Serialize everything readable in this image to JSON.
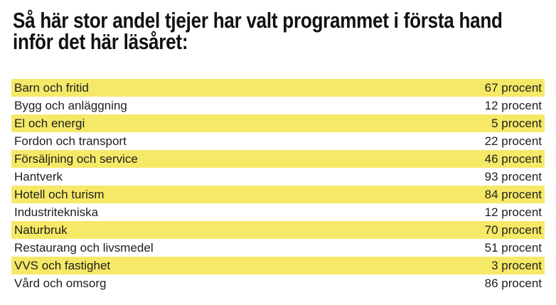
{
  "title": "Så här stor andel tjejer har valt programmet i första hand inför det här läsåret:",
  "colors": {
    "highlight": "#f6e968",
    "text": "#1e1e1e",
    "background": "#ffffff"
  },
  "table": {
    "unit": "procent",
    "rows": [
      {
        "label": "Barn och fritid",
        "value": "67 procent",
        "highlighted": true
      },
      {
        "label": "Bygg och anläggning",
        "value": "12 procent",
        "highlighted": false
      },
      {
        "label": "El och energi",
        "value": "5 procent",
        "highlighted": true
      },
      {
        "label": "Fordon och transport",
        "value": "22 procent",
        "highlighted": false
      },
      {
        "label": "Försäljning och service",
        "value": "46 procent",
        "highlighted": true
      },
      {
        "label": "Hantverk",
        "value": "93 procent",
        "highlighted": false
      },
      {
        "label": "Hotell och turism",
        "value": "84 procent",
        "highlighted": true
      },
      {
        "label": "Industritekniska",
        "value": "12 procent",
        "highlighted": false
      },
      {
        "label": "Naturbruk",
        "value": "70 procent",
        "highlighted": true
      },
      {
        "label": "Restaurang och livsmedel",
        "value": "51 procent",
        "highlighted": false
      },
      {
        "label": "VVS och fastighet",
        "value": "3 procent",
        "highlighted": true
      },
      {
        "label": "Vård och omsorg",
        "value": "86 procent",
        "highlighted": false
      }
    ]
  },
  "chart_data": {
    "type": "table",
    "title": "Så här stor andel tjejer har valt programmet i första hand inför det här läsåret:",
    "categories": [
      "Barn och fritid",
      "Bygg och anläggning",
      "El och energi",
      "Fordon och transport",
      "Försäljning och service",
      "Hantverk",
      "Hotell och turism",
      "Industritekniska",
      "Naturbruk",
      "Restaurang och livsmedel",
      "VVS och fastighet",
      "Vård och omsorg"
    ],
    "values": [
      67,
      12,
      5,
      22,
      46,
      93,
      84,
      12,
      70,
      51,
      3,
      86
    ],
    "unit": "procent",
    "highlighted_rows": [
      "Barn och fritid",
      "El och energi",
      "Försäljning och service",
      "Hotell och turism",
      "Naturbruk",
      "VVS och fastighet"
    ]
  }
}
